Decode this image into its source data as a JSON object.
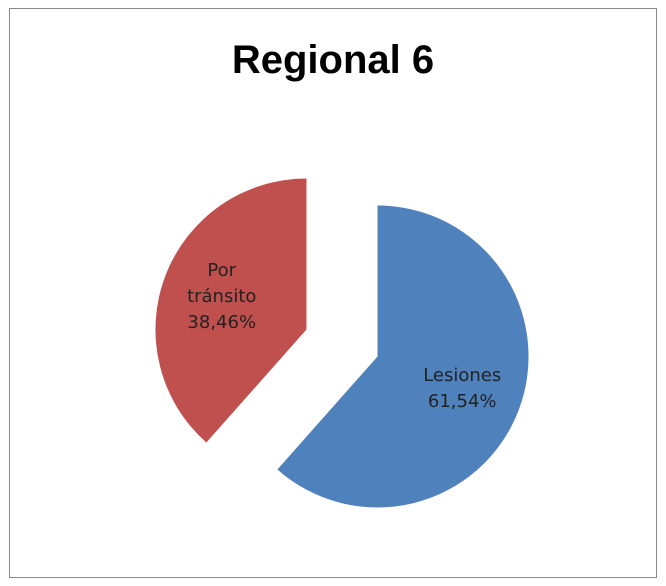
{
  "chart_data": {
    "type": "pie",
    "title": "Regional 6",
    "categories": [
      "Lesiones",
      "Por tránsito"
    ],
    "values": [
      61.54,
      38.46
    ],
    "value_labels": [
      "61,54%",
      "38,46%"
    ],
    "colors": [
      "#4f81bd",
      "#c0504d"
    ],
    "exploded": true
  }
}
